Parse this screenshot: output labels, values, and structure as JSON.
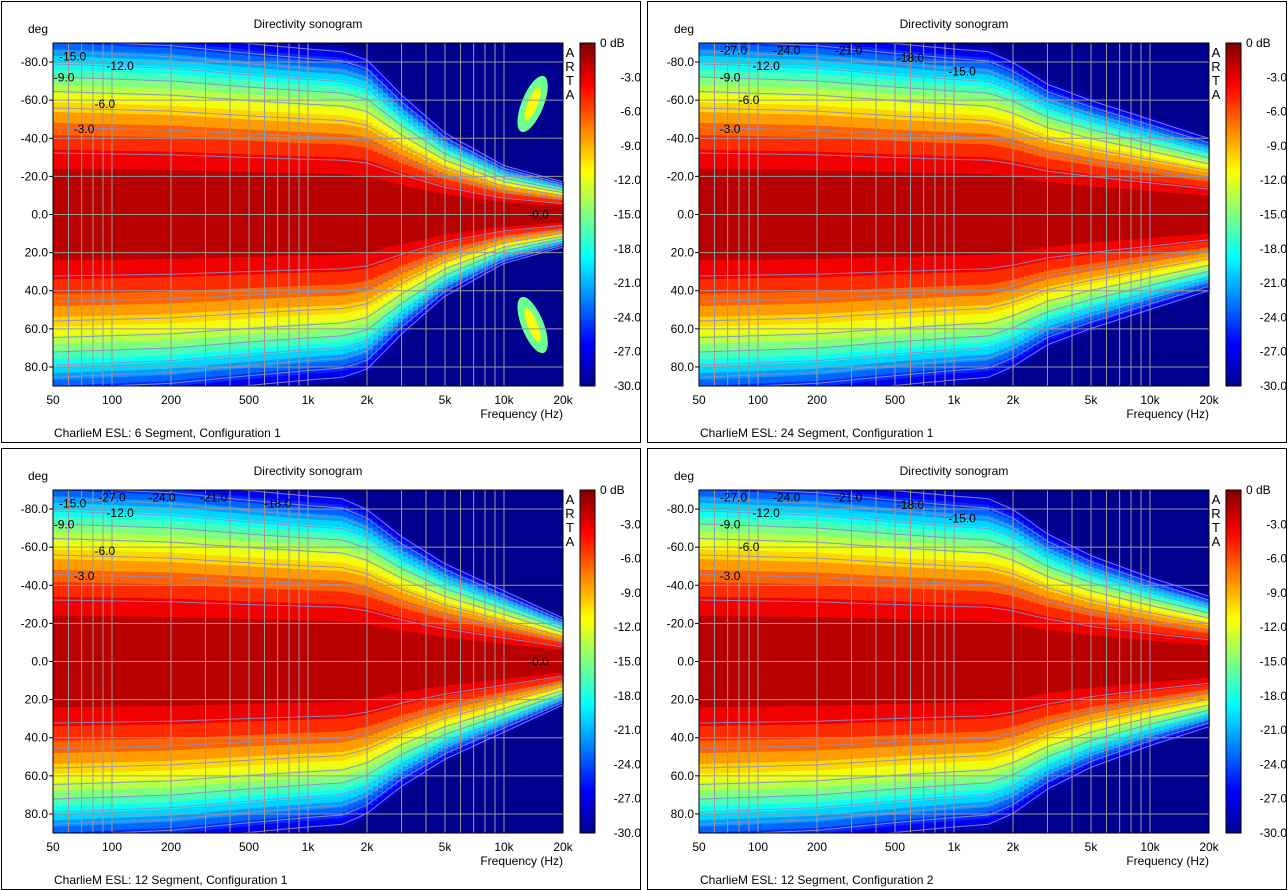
{
  "chart_data": [
    {
      "type": "heatmap",
      "title": "Directivity sonogram",
      "caption": "CharlieM ESL: 6 Segment, Configuration 1",
      "xlabel": "Frequency (Hz)",
      "ylabel": "deg",
      "x_scale": "log",
      "xlim": [
        50,
        20000
      ],
      "ylim": [
        -90,
        90
      ],
      "x_ticks": [
        "50",
        "100",
        "200",
        "500",
        "1k",
        "2k",
        "5k",
        "10k",
        "20k"
      ],
      "y_ticks": [
        "-80.0",
        "-60.0",
        "-40.0",
        "-20.0",
        "0.0",
        "20.0",
        "40.0",
        "60.0",
        "80.0"
      ],
      "colorbar": {
        "label": "0 dB",
        "ticks": [
          "-3.0",
          "-6.0",
          "-9.0",
          "-12.0",
          "-15.0",
          "-18.0",
          "-21.0",
          "-24.0",
          "-27.0",
          "-30.0"
        ],
        "range": [
          -30,
          0
        ]
      },
      "watermark": "ARTA",
      "contour_labels": [
        {
          "text": "-15.0",
          "f": 63,
          "deg": -83
        },
        {
          "text": "-9.0",
          "f": 57,
          "deg": -72
        },
        {
          "text": "-12.0",
          "f": 110,
          "deg": -78
        },
        {
          "text": "-6.0",
          "f": 92,
          "deg": -58
        },
        {
          "text": "-3.0",
          "f": 72,
          "deg": -45
        },
        {
          "text": "-0.0",
          "f": 15000,
          "deg": 0
        }
      ],
      "beam_half_width_deg": [
        {
          "f": 50,
          "w": 68
        },
        {
          "f": 200,
          "w": 66
        },
        {
          "f": 500,
          "w": 63
        },
        {
          "f": 1000,
          "w": 61
        },
        {
          "f": 1500,
          "w": 60
        },
        {
          "f": 2000,
          "w": 57
        },
        {
          "f": 3000,
          "w": 44
        },
        {
          "f": 5000,
          "w": 30
        },
        {
          "f": 10000,
          "w": 18
        },
        {
          "f": 20000,
          "w": 12
        }
      ],
      "side_lobes": true
    },
    {
      "type": "heatmap",
      "title": "Directivity sonogram",
      "caption": "CharlieM ESL: 24 Segment, Configuration 1",
      "xlabel": "Frequency (Hz)",
      "ylabel": "deg",
      "x_scale": "log",
      "xlim": [
        50,
        20000
      ],
      "ylim": [
        -90,
        90
      ],
      "x_ticks": [
        "50",
        "100",
        "200",
        "500",
        "1k",
        "2k",
        "5k",
        "10k",
        "20k"
      ],
      "y_ticks": [
        "-80.0",
        "-60.0",
        "-40.0",
        "-20.0",
        "0.0",
        "20.0",
        "40.0",
        "60.0",
        "80.0"
      ],
      "colorbar": {
        "label": "0 dB",
        "ticks": [
          "-3.0",
          "-6.0",
          "-9.0",
          "-12.0",
          "-15.0",
          "-18.0",
          "-21.0",
          "-24.0",
          "-27.0",
          "-30.0"
        ],
        "range": [
          -30,
          0
        ]
      },
      "watermark": "ARTA",
      "contour_labels": [
        {
          "text": "-27.0",
          "f": 75,
          "deg": -86
        },
        {
          "text": "-24.0",
          "f": 140,
          "deg": -86
        },
        {
          "text": "-21.0",
          "f": 290,
          "deg": -86
        },
        {
          "text": "-18.0",
          "f": 600,
          "deg": -82
        },
        {
          "text": "-15.0",
          "f": 1100,
          "deg": -75
        },
        {
          "text": "-12.0",
          "f": 110,
          "deg": -78
        },
        {
          "text": "-9.0",
          "f": 72,
          "deg": -72
        },
        {
          "text": "-6.0",
          "f": 90,
          "deg": -60
        },
        {
          "text": "-3.0",
          "f": 72,
          "deg": -45
        }
      ],
      "beam_half_width_deg": [
        {
          "f": 50,
          "w": 68
        },
        {
          "f": 200,
          "w": 66
        },
        {
          "f": 500,
          "w": 63
        },
        {
          "f": 1000,
          "w": 61
        },
        {
          "f": 1500,
          "w": 60
        },
        {
          "f": 2000,
          "w": 56
        },
        {
          "f": 3000,
          "w": 48
        },
        {
          "f": 5000,
          "w": 42
        },
        {
          "f": 10000,
          "w": 35
        },
        {
          "f": 20000,
          "w": 28
        }
      ],
      "side_lobes": false
    },
    {
      "type": "heatmap",
      "title": "Directivity sonogram",
      "caption": "CharlieM ESL: 12 Segment, Configuration 1",
      "xlabel": "Frequency (Hz)",
      "ylabel": "deg",
      "x_scale": "log",
      "xlim": [
        50,
        20000
      ],
      "ylim": [
        -90,
        90
      ],
      "x_ticks": [
        "50",
        "100",
        "200",
        "500",
        "1k",
        "2k",
        "5k",
        "10k",
        "20k"
      ],
      "y_ticks": [
        "-80.0",
        "-60.0",
        "-40.0",
        "-20.0",
        "0.0",
        "20.0",
        "40.0",
        "60.0",
        "80.0"
      ],
      "colorbar": {
        "label": "0 dB",
        "ticks": [
          "-3.0",
          "-6.0",
          "-9.0",
          "-12.0",
          "-15.0",
          "-18.0",
          "-21.0",
          "-24.0",
          "-27.0",
          "-30.0"
        ],
        "range": [
          -30,
          0
        ]
      },
      "watermark": "ARTA",
      "contour_labels": [
        {
          "text": "-15.0",
          "f": 63,
          "deg": -83
        },
        {
          "text": "-27.0",
          "f": 100,
          "deg": -86
        },
        {
          "text": "-24.0",
          "f": 180,
          "deg": -86
        },
        {
          "text": "-21.0",
          "f": 330,
          "deg": -86
        },
        {
          "text": "-18.0",
          "f": 700,
          "deg": -83
        },
        {
          "text": "-12.0",
          "f": 110,
          "deg": -78
        },
        {
          "text": "-9.0",
          "f": 57,
          "deg": -72
        },
        {
          "text": "-6.0",
          "f": 92,
          "deg": -58
        },
        {
          "text": "-3.0",
          "f": 72,
          "deg": -45
        },
        {
          "text": "-0.0",
          "f": 15000,
          "deg": 0
        }
      ],
      "beam_half_width_deg": [
        {
          "f": 50,
          "w": 68
        },
        {
          "f": 200,
          "w": 66
        },
        {
          "f": 500,
          "w": 63
        },
        {
          "f": 1000,
          "w": 61
        },
        {
          "f": 1500,
          "w": 60
        },
        {
          "f": 2000,
          "w": 56
        },
        {
          "f": 3000,
          "w": 46
        },
        {
          "f": 5000,
          "w": 36
        },
        {
          "f": 10000,
          "w": 26
        },
        {
          "f": 20000,
          "w": 16
        }
      ],
      "side_lobes": false
    },
    {
      "type": "heatmap",
      "title": "Directivity sonogram",
      "caption": "CharlieM ESL: 12 Segment, Configuration 2",
      "xlabel": "Frequency (Hz)",
      "ylabel": "deg",
      "x_scale": "log",
      "xlim": [
        50,
        20000
      ],
      "ylim": [
        -90,
        90
      ],
      "x_ticks": [
        "50",
        "100",
        "200",
        "500",
        "1k",
        "2k",
        "5k",
        "10k",
        "20k"
      ],
      "y_ticks": [
        "-80.0",
        "-60.0",
        "-40.0",
        "-20.0",
        "0.0",
        "20.0",
        "40.0",
        "60.0",
        "80.0"
      ],
      "colorbar": {
        "label": "0 dB",
        "ticks": [
          "-3.0",
          "-6.0",
          "-9.0",
          "-12.0",
          "-15.0",
          "-18.0",
          "-21.0",
          "-24.0",
          "-27.0",
          "-30.0"
        ],
        "range": [
          -30,
          0
        ]
      },
      "watermark": "ARTA",
      "contour_labels": [
        {
          "text": "-27.0",
          "f": 75,
          "deg": -86
        },
        {
          "text": "-24.0",
          "f": 140,
          "deg": -86
        },
        {
          "text": "-21.0",
          "f": 290,
          "deg": -86
        },
        {
          "text": "-18.0",
          "f": 600,
          "deg": -82
        },
        {
          "text": "-15.0",
          "f": 1100,
          "deg": -75
        },
        {
          "text": "-12.0",
          "f": 110,
          "deg": -78
        },
        {
          "text": "-9.0",
          "f": 72,
          "deg": -72
        },
        {
          "text": "-6.0",
          "f": 90,
          "deg": -60
        },
        {
          "text": "-3.0",
          "f": 72,
          "deg": -45
        }
      ],
      "beam_half_width_deg": [
        {
          "f": 50,
          "w": 68
        },
        {
          "f": 200,
          "w": 66
        },
        {
          "f": 500,
          "w": 63
        },
        {
          "f": 1000,
          "w": 61
        },
        {
          "f": 1500,
          "w": 60
        },
        {
          "f": 2000,
          "w": 56
        },
        {
          "f": 3000,
          "w": 47
        },
        {
          "f": 5000,
          "w": 39
        },
        {
          "f": 10000,
          "w": 31
        },
        {
          "f": 20000,
          "w": 24
        }
      ],
      "side_lobes": false
    }
  ],
  "colors": {
    "colormap": [
      "#00008f",
      "#0000ff",
      "#0080ff",
      "#00ffff",
      "#80ff80",
      "#ffff00",
      "#ff8000",
      "#ff0000",
      "#800000"
    ],
    "grid": "#9a9a9a",
    "contour": "#8c8cc8"
  }
}
